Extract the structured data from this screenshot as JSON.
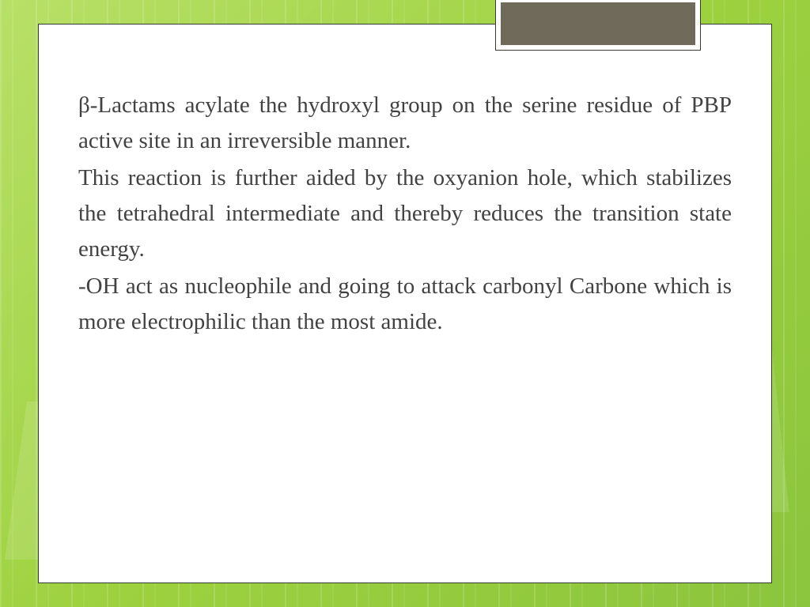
{
  "slide": {
    "background": {
      "gradient_start": "#b8e068",
      "gradient_mid": "#9dd13f",
      "gradient_end": "#8bc53e",
      "pattern_color": "rgba(255,255,255,0.15)"
    },
    "card": {
      "bg": "#ffffff",
      "border": "#3a3a2e"
    },
    "tab": {
      "outer_bg": "#ffffff",
      "inner_bg": "#706a5a",
      "border": "#3a3a2e"
    },
    "text_color": "#424242",
    "font_size_pt": 22,
    "paragraphs": [
      "β-Lactams acylate the hydroxyl group on the serine residue of PBP active site in an irreversible manner.",
      "This reaction is further aided by the oxyanion hole, which stabilizes the tetrahedral intermediate and thereby reduces the transition state energy.",
      "-OH act as nucleophile and going to attack carbonyl Carbone which is more electrophilic than the most amide."
    ]
  }
}
